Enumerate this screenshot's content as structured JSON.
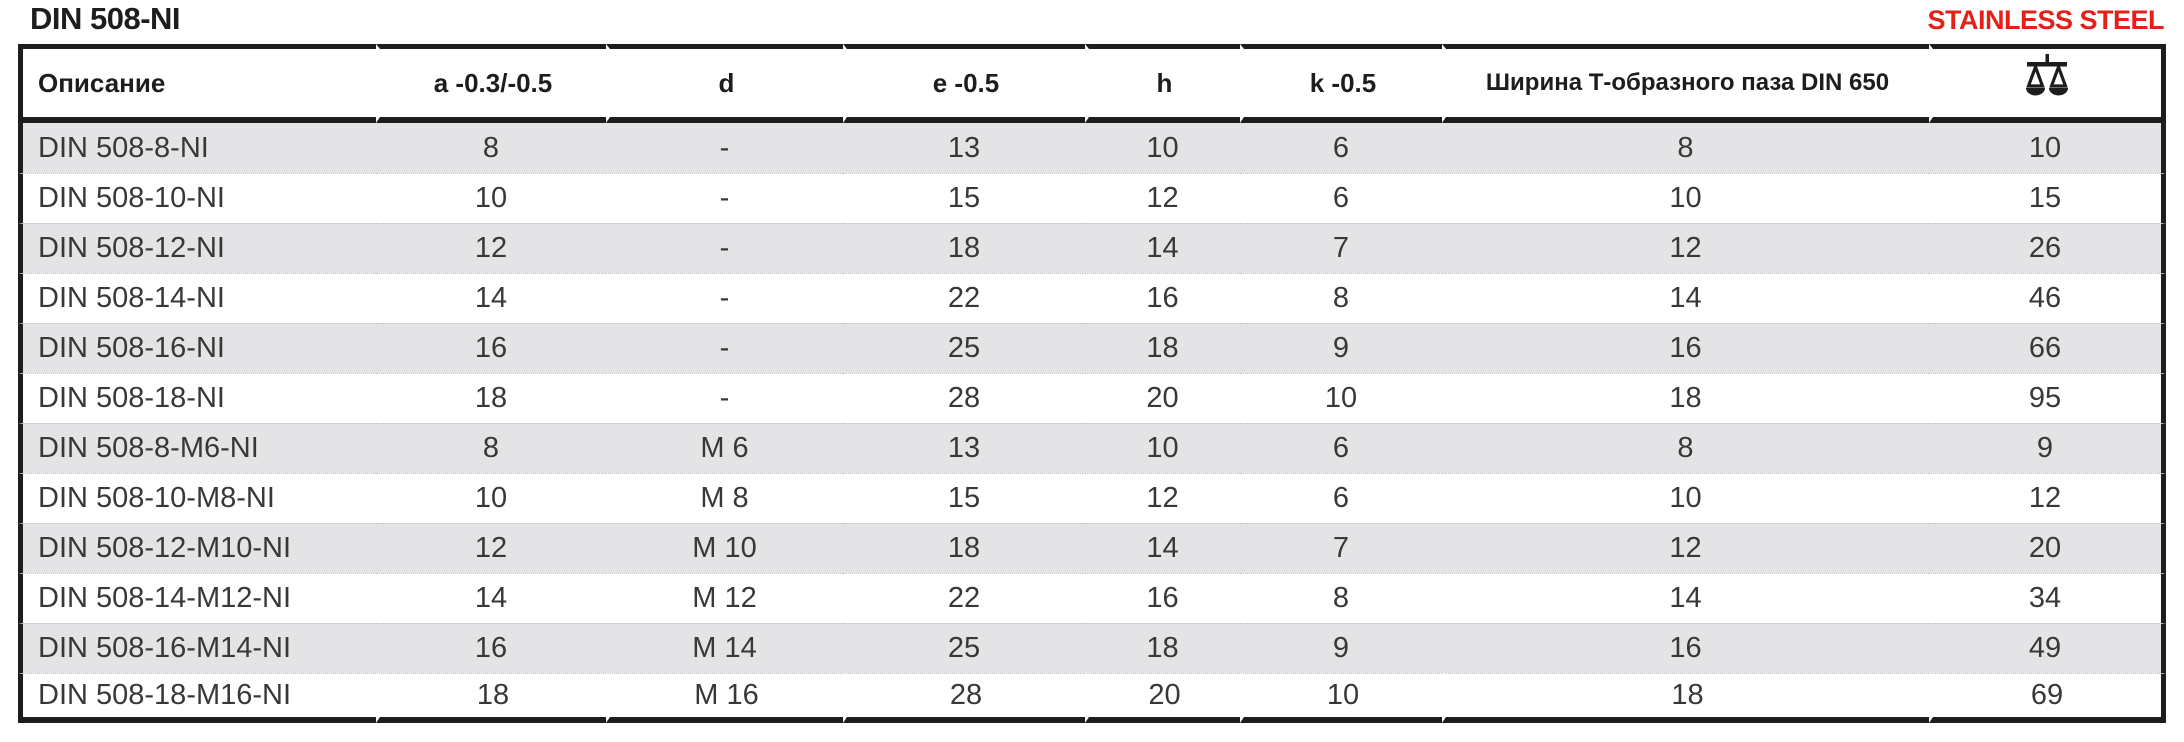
{
  "page": {
    "title": "DIN 508-NI",
    "material_badge": "STAINLESS STEEL"
  },
  "colors": {
    "badge_red": "#e32119",
    "row_alt_gray": "#e4e4e6",
    "border_black": "#1d1d1b"
  },
  "table": {
    "columns": [
      {
        "key": "description",
        "label": "Описание"
      },
      {
        "key": "a",
        "label": "a -0.3/-0.5"
      },
      {
        "key": "d",
        "label": "d"
      },
      {
        "key": "e",
        "label": "e -0.5"
      },
      {
        "key": "h",
        "label": "h"
      },
      {
        "key": "k",
        "label": "k -0.5"
      },
      {
        "key": "slot_width",
        "label": "Ширина Т-образного паза DIN 650"
      },
      {
        "key": "weight",
        "label": "",
        "icon": "scale-icon"
      }
    ],
    "rows": [
      [
        "DIN 508-8-NI",
        "8",
        "-",
        "13",
        "10",
        "6",
        "8",
        "10"
      ],
      [
        "DIN 508-10-NI",
        "10",
        "-",
        "15",
        "12",
        "6",
        "10",
        "15"
      ],
      [
        "DIN 508-12-NI",
        "12",
        "-",
        "18",
        "14",
        "7",
        "12",
        "26"
      ],
      [
        "DIN 508-14-NI",
        "14",
        "-",
        "22",
        "16",
        "8",
        "14",
        "46"
      ],
      [
        "DIN 508-16-NI",
        "16",
        "-",
        "25",
        "18",
        "9",
        "16",
        "66"
      ],
      [
        "DIN 508-18-NI",
        "18",
        "-",
        "28",
        "20",
        "10",
        "18",
        "95"
      ],
      [
        "DIN 508-8-M6-NI",
        "8",
        "M 6",
        "13",
        "10",
        "6",
        "8",
        "9"
      ],
      [
        "DIN 508-10-M8-NI",
        "10",
        "M 8",
        "15",
        "12",
        "6",
        "10",
        "12"
      ],
      [
        "DIN 508-12-M10-NI",
        "12",
        "M 10",
        "18",
        "14",
        "7",
        "12",
        "20"
      ],
      [
        "DIN 508-14-M12-NI",
        "14",
        "M 12",
        "22",
        "16",
        "8",
        "14",
        "34"
      ],
      [
        "DIN 508-16-M14-NI",
        "16",
        "M 14",
        "25",
        "18",
        "9",
        "16",
        "49"
      ],
      [
        "DIN 508-18-M16-NI",
        "18",
        "M 16",
        "28",
        "20",
        "10",
        "18",
        "69"
      ]
    ]
  }
}
